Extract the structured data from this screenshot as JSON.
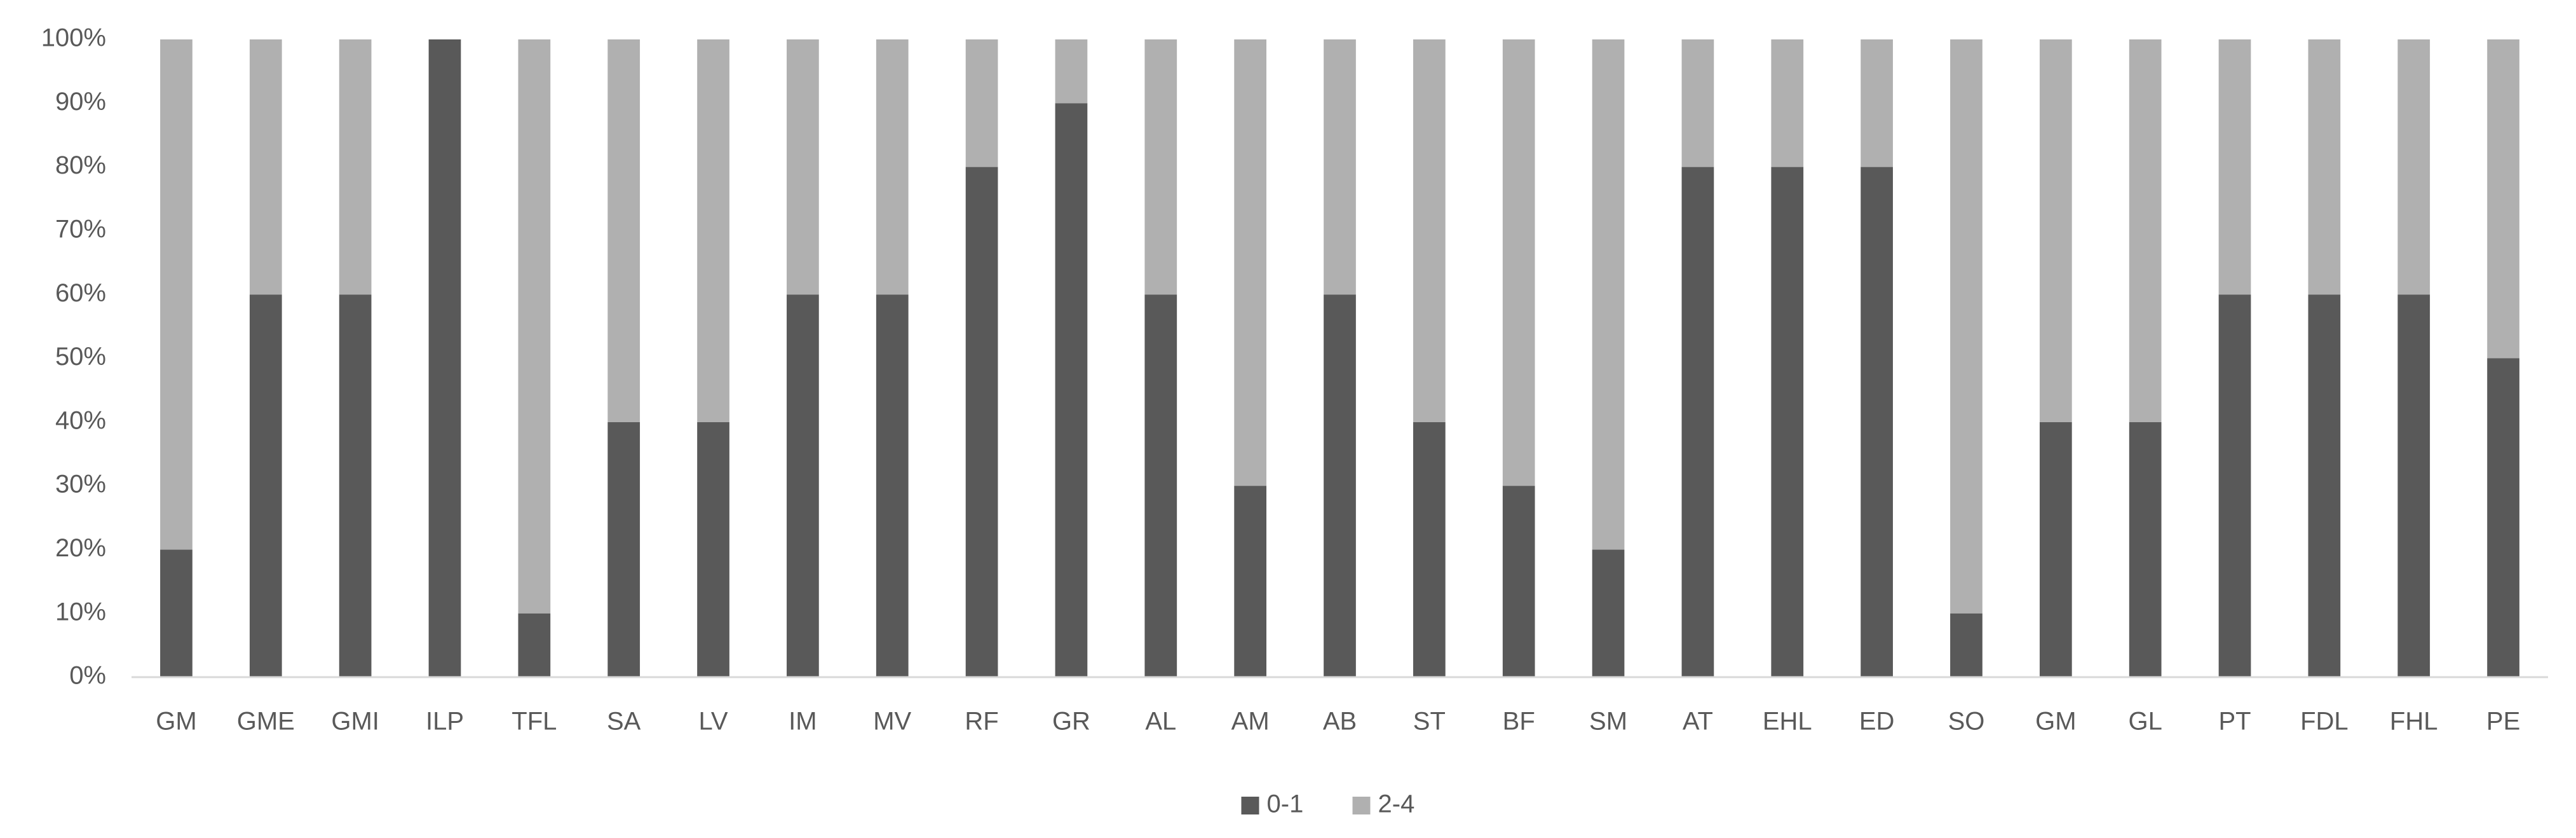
{
  "chart_data": {
    "type": "stacked_bar",
    "categories": [
      "GM",
      "GME",
      "GMI",
      "ILP",
      "TFL",
      "SA",
      "LV",
      "IM",
      "MV",
      "RF",
      "GR",
      "AL",
      "AM",
      "AB",
      "ST",
      "BF",
      "SM",
      "AT",
      "EHL",
      "ED",
      "SO",
      "GM",
      "GL",
      "PT",
      "FDL",
      "FHL",
      "PE"
    ],
    "series": [
      {
        "name": "0-1",
        "color": "#595959",
        "values": [
          20,
          60,
          60,
          100,
          10,
          40,
          40,
          60,
          60,
          80,
          90,
          60,
          30,
          60,
          40,
          30,
          20,
          80,
          80,
          80,
          10,
          40,
          40,
          60,
          60,
          60,
          50
        ]
      },
      {
        "name": "2-4",
        "color": "#b0b0b0",
        "values": [
          80,
          40,
          40,
          0,
          90,
          60,
          60,
          40,
          40,
          20,
          10,
          40,
          70,
          40,
          60,
          70,
          80,
          20,
          20,
          20,
          90,
          60,
          60,
          40,
          40,
          40,
          50
        ]
      }
    ],
    "ylim": [
      0,
      100
    ],
    "yticks": [
      {
        "value": 0,
        "label": "0%"
      },
      {
        "value": 10,
        "label": "10%"
      },
      {
        "value": 20,
        "label": "20%"
      },
      {
        "value": 30,
        "label": "30%"
      },
      {
        "value": 40,
        "label": "40%"
      },
      {
        "value": 50,
        "label": "50%"
      },
      {
        "value": 60,
        "label": "60%"
      },
      {
        "value": 70,
        "label": "70%"
      },
      {
        "value": 80,
        "label": "80%"
      },
      {
        "value": 90,
        "label": "90%"
      },
      {
        "value": 100,
        "label": "100%"
      }
    ],
    "grid": false,
    "legend": "bottom"
  }
}
